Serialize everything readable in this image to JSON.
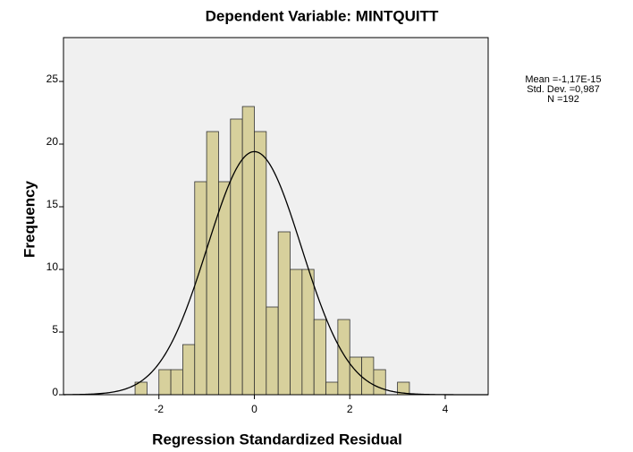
{
  "chart_data": {
    "type": "histogram",
    "title": "Dependent Variable: MINTQUITT",
    "xlabel": "Regression Standardized Residual",
    "ylabel": "Frequency",
    "bins": [
      -2.5,
      -2.25,
      -2,
      -1.75,
      -1.5,
      -1.25,
      -1,
      -0.75,
      -0.5,
      -0.25,
      0,
      0.25,
      0.5,
      0.75,
      1,
      1.25,
      1.5,
      1.75,
      2,
      2.25,
      2.5,
      2.75,
      3,
      3.25
    ],
    "counts": [
      1,
      0,
      2,
      2,
      4,
      17,
      21,
      17,
      22,
      23,
      21,
      7,
      13,
      10,
      10,
      6,
      1,
      6,
      3,
      3,
      2,
      0,
      1
    ],
    "color": "#d7d09c",
    "xlim": [
      -4,
      4.9
    ],
    "ylim": [
      0,
      28.5
    ],
    "xticks": [
      -2,
      0,
      2,
      4
    ],
    "yticks": [
      0,
      5,
      10,
      15,
      20,
      25
    ],
    "stats": [
      {
        "value": -1.17e-15,
        "label": "Mean =-1,17E-15"
      },
      {
        "value": 0.987,
        "label": "Std. Dev. =0,987"
      },
      {
        "value": 192,
        "label": "N =192"
      }
    ]
  }
}
